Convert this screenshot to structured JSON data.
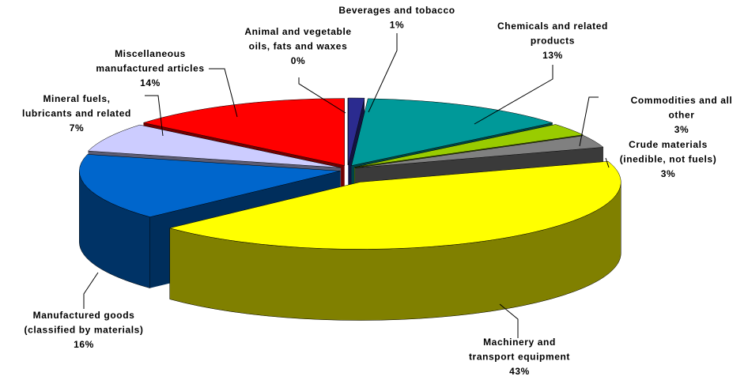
{
  "chart_data": {
    "type": "pie3d",
    "categories": [
      "Animal and vegetable oils, fats and waxes",
      "Beverages and tobacco",
      "Chemicals and related products",
      "Commodities and all other",
      "Crude materials (inedible, not fuels)",
      "Machinery and transport equipment",
      "Manufactured goods (classified by materials)",
      "Mineral fuels, lubricants and related",
      "Miscellaneous manufactured articles"
    ],
    "values": [
      0,
      1,
      13,
      3,
      3,
      43,
      16,
      7,
      14
    ],
    "value_labels": [
      "0%",
      "1%",
      "13%",
      "3%",
      "3%",
      "43%",
      "16%",
      "7%",
      "14%"
    ],
    "colors": [
      "#cce8ff",
      "#2b2b8f",
      "#009999",
      "#99cc00",
      "#808080",
      "#ffff00",
      "#0066cc",
      "#ccccff",
      "#ff0000"
    ]
  }
}
